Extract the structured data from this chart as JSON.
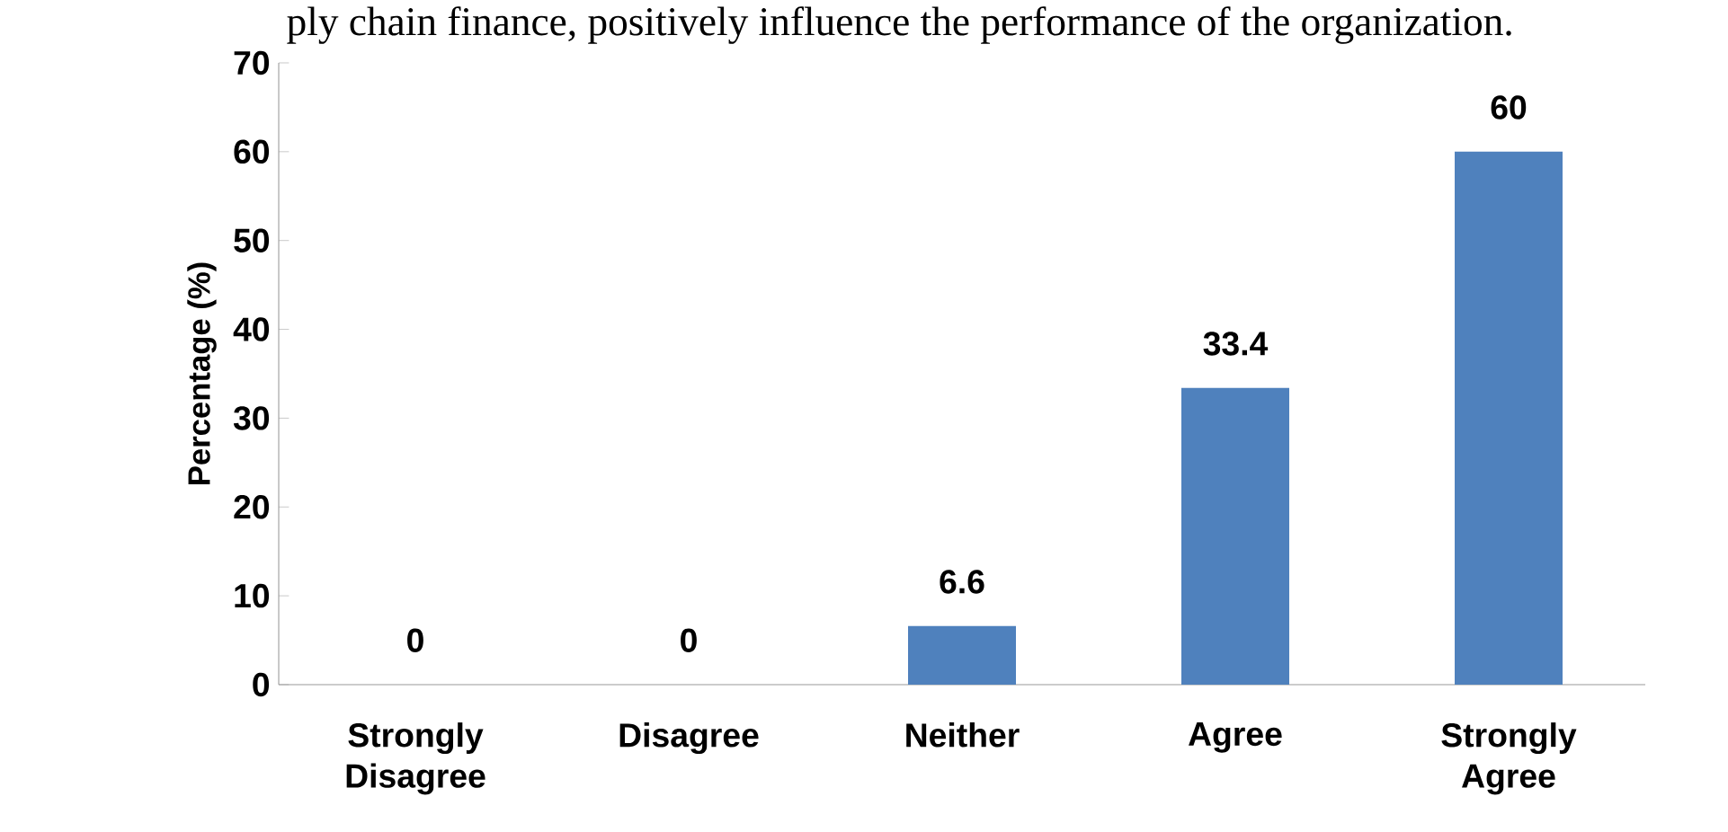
{
  "chart_data": {
    "type": "bar",
    "title": "ply chain finance, positively influence the performance of the organization.",
    "ylabel": "Percentage (%)",
    "categories": [
      "Strongly Disagree",
      "Disagree",
      "Neither",
      "Agree",
      "Strongly Agree"
    ],
    "values": [
      0,
      0,
      6.6,
      33.4,
      60
    ],
    "color": "#4f81bd",
    "ylim": [
      0,
      70
    ],
    "yticks": [
      0,
      10,
      20,
      30,
      40,
      50,
      60,
      70
    ],
    "data_labels": true,
    "grid": false
  }
}
